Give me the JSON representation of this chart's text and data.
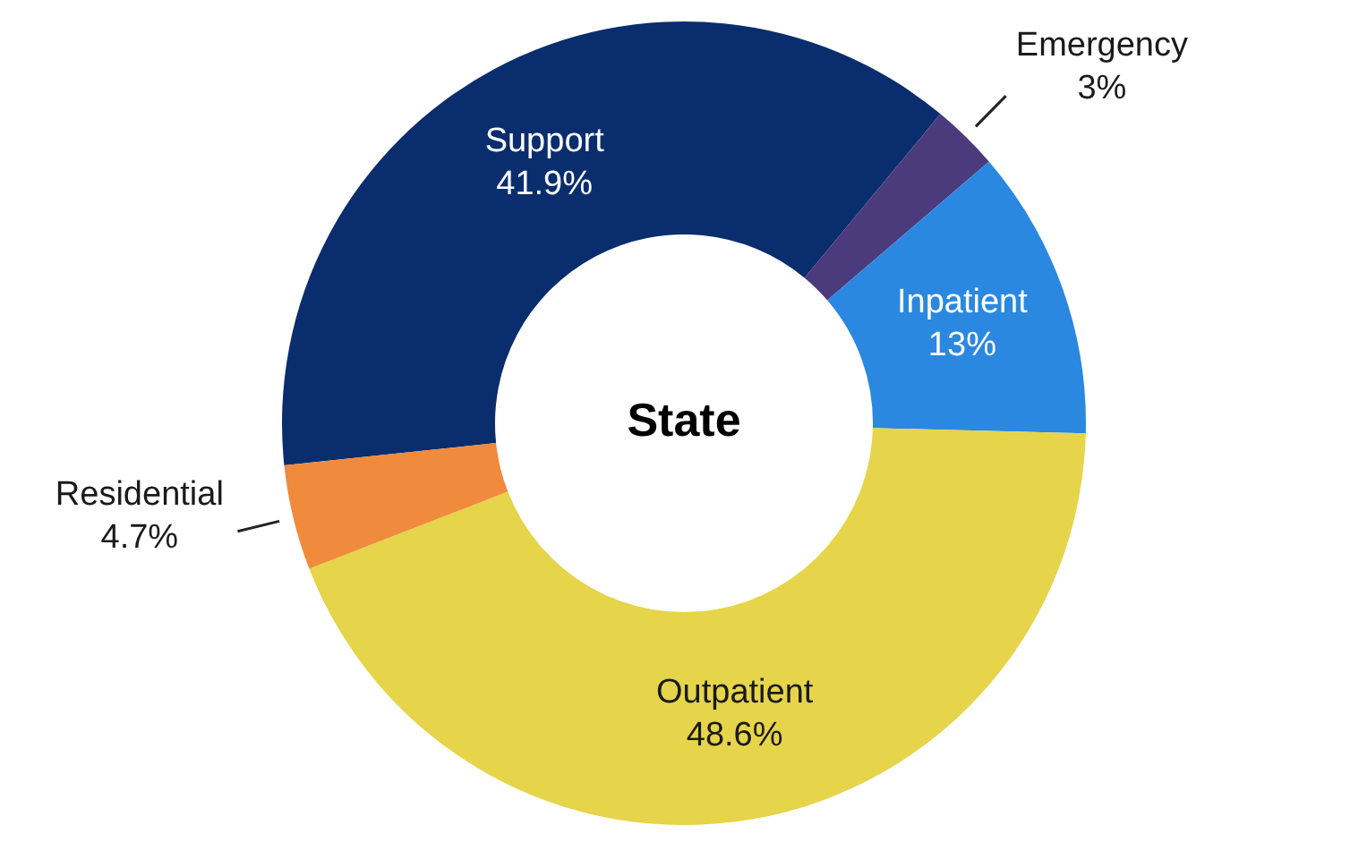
{
  "chart_data": {
    "type": "donut",
    "title": "State",
    "categories": [
      "Support",
      "Emergency",
      "Inpatient",
      "Outpatient",
      "Residential"
    ],
    "values": [
      41.9,
      3,
      13,
      48.6,
      4.7
    ],
    "value_labels": [
      "41.9%",
      "3%",
      "13%",
      "48.6%",
      "4.7%"
    ],
    "colors": [
      "#0a2d6e",
      "#4b3a7c",
      "#2a88e0",
      "#e6d44a",
      "#f08a3c"
    ],
    "legend": false
  }
}
